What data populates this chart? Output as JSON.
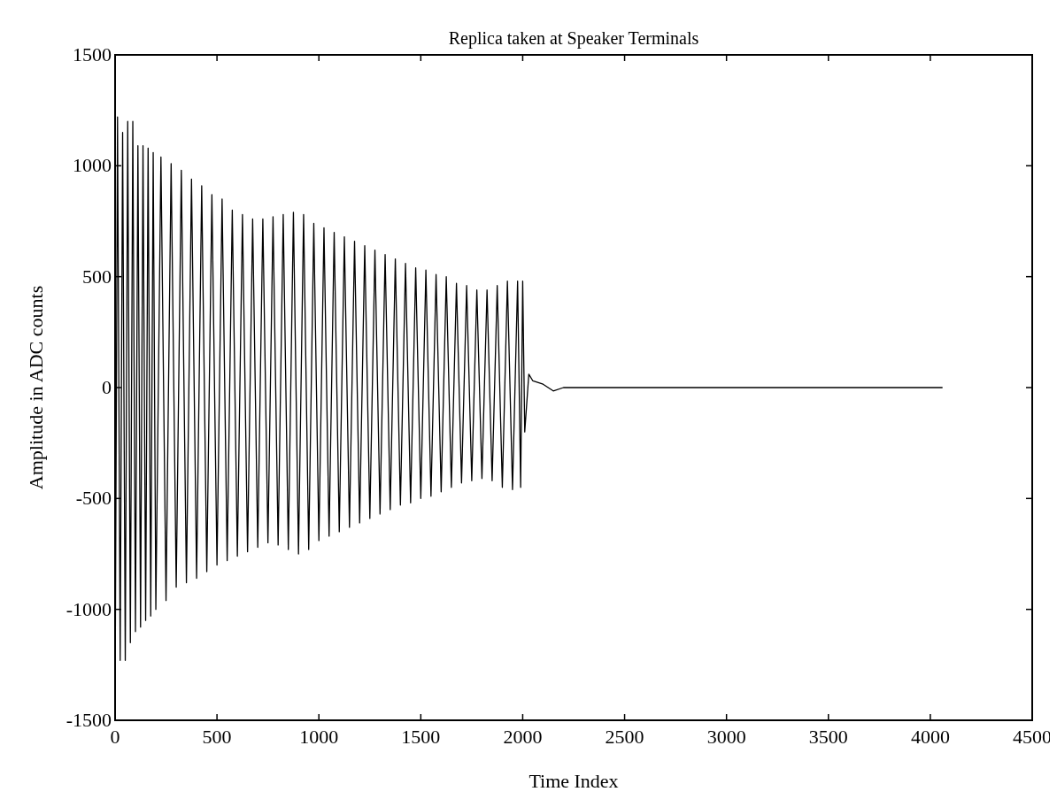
{
  "chart_data": {
    "type": "line",
    "title": "Replica taken at Speaker Terminals",
    "xlabel": "Time Index",
    "ylabel": "Amplitude in ADC counts",
    "x": [
      0,
      12,
      25,
      37,
      50,
      62,
      75,
      87,
      100,
      112,
      125,
      137,
      150,
      162,
      175,
      187,
      200,
      225,
      250,
      275,
      300,
      325,
      350,
      375,
      400,
      425,
      450,
      475,
      500,
      525,
      550,
      575,
      600,
      625,
      650,
      675,
      700,
      725,
      750,
      775,
      800,
      825,
      850,
      875,
      900,
      925,
      950,
      975,
      1000,
      1025,
      1050,
      1075,
      1100,
      1125,
      1150,
      1175,
      1200,
      1225,
      1250,
      1275,
      1300,
      1325,
      1350,
      1375,
      1400,
      1425,
      1450,
      1475,
      1500,
      1525,
      1550,
      1575,
      1600,
      1625,
      1650,
      1675,
      1700,
      1725,
      1750,
      1775,
      1800,
      1825,
      1850,
      1875,
      1900,
      1925,
      1950,
      1975,
      1990,
      2000,
      2010,
      2030,
      2050,
      2100,
      2150,
      2200,
      4060
    ],
    "series": [
      {
        "color": "#000000",
        "values": [
          -1450,
          1220,
          -1230,
          1150,
          -1230,
          1200,
          -1150,
          1200,
          -1100,
          1090,
          -1080,
          1090,
          -1050,
          1080,
          -1030,
          1060,
          -1000,
          1040,
          -960,
          1010,
          -900,
          980,
          -880,
          940,
          -860,
          910,
          -830,
          870,
          -800,
          850,
          -780,
          800,
          -760,
          780,
          -740,
          760,
          -720,
          760,
          -700,
          770,
          -710,
          780,
          -730,
          790,
          -750,
          780,
          -730,
          740,
          -690,
          720,
          -670,
          700,
          -650,
          680,
          -630,
          660,
          -610,
          640,
          -590,
          620,
          -570,
          600,
          -550,
          580,
          -530,
          560,
          -520,
          540,
          -500,
          530,
          -490,
          510,
          -470,
          500,
          -450,
          470,
          -430,
          460,
          -420,
          440,
          -410,
          440,
          -420,
          460,
          -450,
          480,
          -460,
          480,
          -450,
          480,
          -200,
          60,
          30,
          15,
          -15,
          0,
          0
        ]
      }
    ],
    "xlim": [
      0,
      4500
    ],
    "ylim": [
      -1500,
      1500
    ],
    "xticks": [
      0,
      500,
      1000,
      1500,
      2000,
      2500,
      3000,
      3500,
      4000,
      4500
    ],
    "yticks": [
      -1500,
      -1000,
      -500,
      0,
      500,
      1000,
      1500
    ],
    "grid": false,
    "marker": "none",
    "line_style": "solid"
  }
}
